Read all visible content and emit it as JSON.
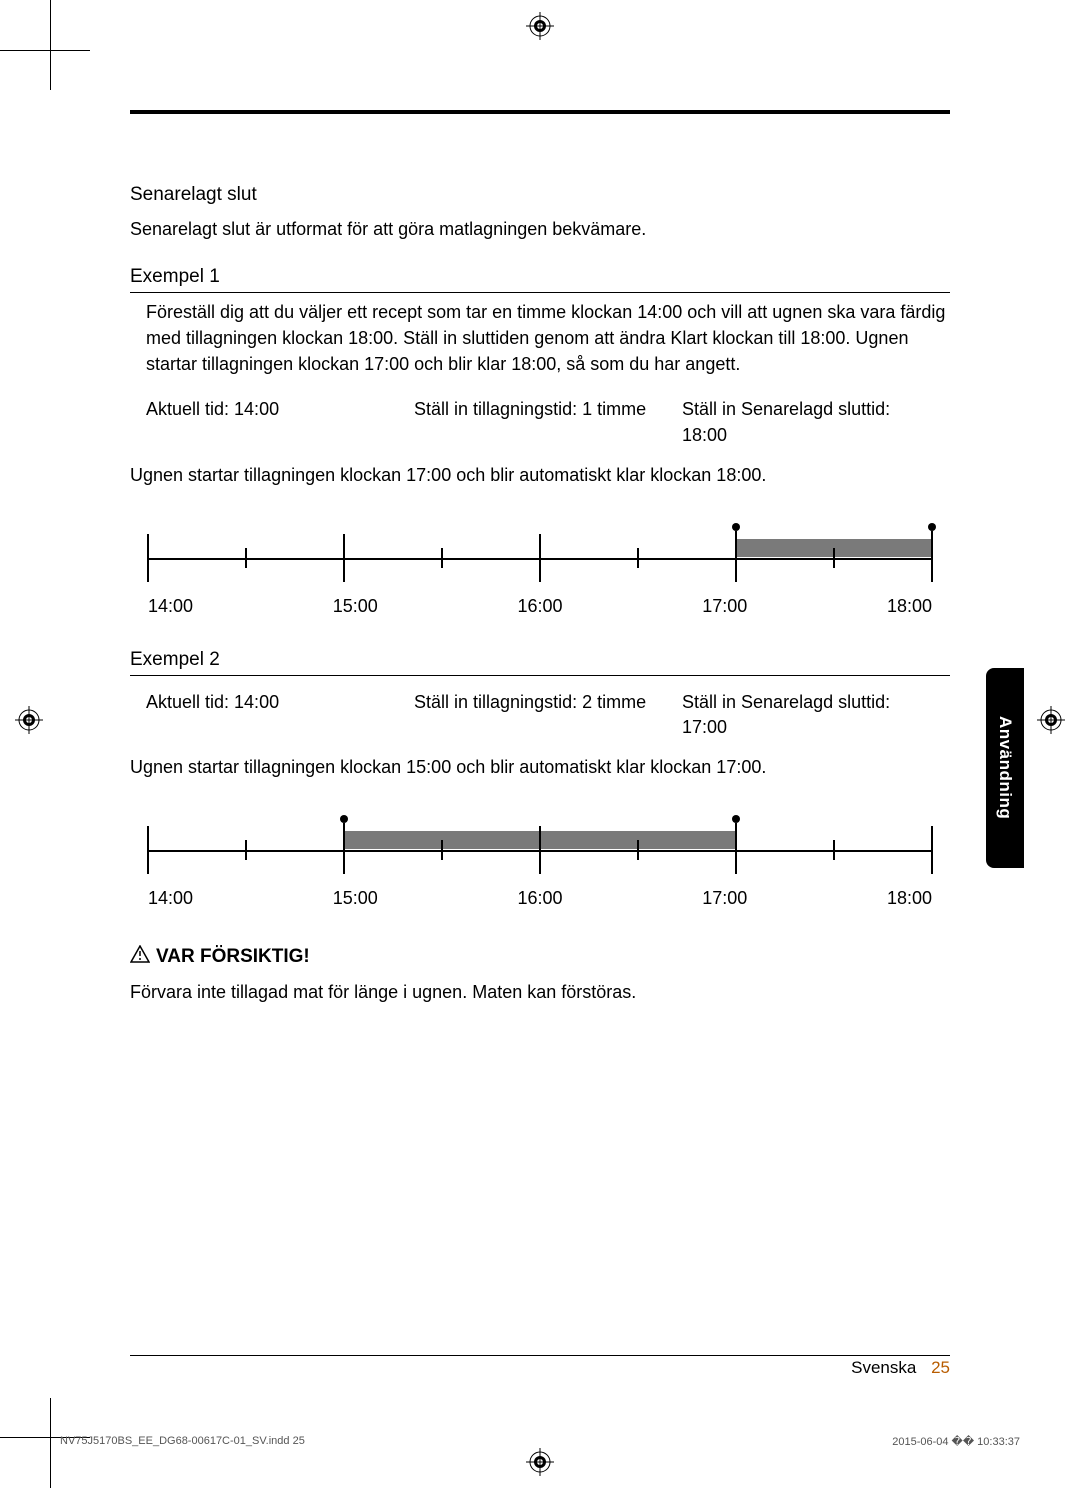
{
  "section_title": "Senarelagt slut",
  "section_intro": "Senarelagt slut är utformat för att göra matlagningen bekvämare.",
  "ex1": {
    "heading": "Exempel 1",
    "body": "Föreställ dig att du väljer ett recept som tar en timme klockan 14:00 och vill att ugnen ska vara färdig med tillagningen klockan 18:00. Ställ in sluttiden genom att ändra Klart klockan till 18:00. Ugnen startar tillagningen klockan 17:00 och blir klar 18:00, så som du har angett.",
    "col1": "Aktuell tid: 14:00",
    "col2": "Ställ in tillagningstid: 1 timme",
    "col3": "Ställ in Senarelagd sluttid: 18:00",
    "result": "Ugnen startar tillagningen klockan 17:00 och blir automatiskt klar klockan 18:00.",
    "labels": [
      "14:00",
      "15:00",
      "16:00",
      "17:00",
      "18:00"
    ],
    "bar_start_pct": 75,
    "bar_end_pct": 100,
    "dots_pct": [
      75,
      100
    ]
  },
  "ex2": {
    "heading": "Exempel 2",
    "col1": "Aktuell tid: 14:00",
    "col2": "Ställ in tillagningstid: 2 timme",
    "col3": "Ställ in Senarelagd sluttid: 17:00",
    "result": "Ugnen startar tillagningen klockan 15:00 och blir automatiskt klar klockan 17:00.",
    "labels": [
      "14:00",
      "15:00",
      "16:00",
      "17:00",
      "18:00"
    ],
    "bar_start_pct": 25,
    "bar_end_pct": 75,
    "dots_pct": [
      25,
      75
    ]
  },
  "caution_label": "VAR FÖRSIKTIG!",
  "caution_text": "Förvara inte tillagad mat för länge i ugnen. Maten kan förstöras.",
  "side_tab": "Användning",
  "footer_lang": "Svenska",
  "footer_page": "25",
  "print_file": "NV75J5170BS_EE_DG68-00617C-01_SV.indd   25",
  "print_date": "2015-06-04   �� 10:33:37",
  "colors": {
    "bar": "#7a7a7a",
    "orange": "#b85c00"
  }
}
